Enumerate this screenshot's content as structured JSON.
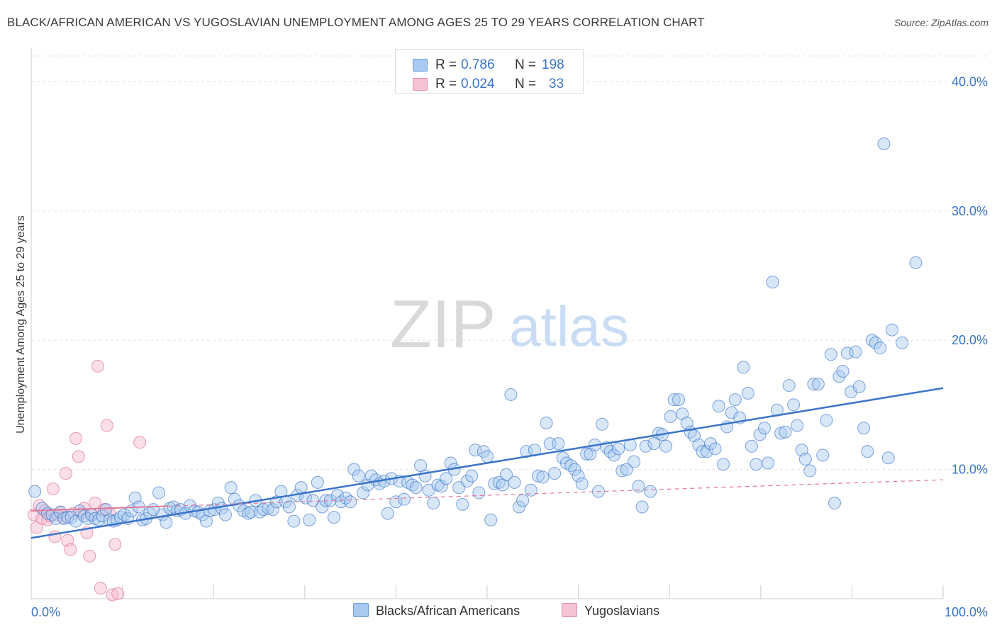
{
  "title": "BLACK/AFRICAN AMERICAN VS YUGOSLAVIAN UNEMPLOYMENT AMONG AGES 25 TO 29 YEARS CORRELATION CHART",
  "source": "Source: ZipAtlas.com",
  "watermark": {
    "zip": "ZIP",
    "atlas": "atlas"
  },
  "colors": {
    "blue": "#3a74c9",
    "blue_fill": "#a9c9f0",
    "pink": "#e0799b",
    "pink_fill": "#f5b8cb",
    "grid": "#e3e3e3"
  },
  "stats": {
    "rows": [
      {
        "r_label": "R =",
        "r_value": "0.786",
        "n_label": "N =",
        "n_value": "198"
      },
      {
        "r_label": "R =",
        "r_value": "0.024",
        "n_label": "N =",
        "n_value": "33"
      }
    ]
  },
  "legend": {
    "blue_label": "Blacks/African Americans",
    "pink_label": "Yugoslavians"
  },
  "chart_data": {
    "type": "scatter",
    "title": "BLACK/AFRICAN AMERICAN VS YUGOSLAVIAN UNEMPLOYMENT AMONG AGES 25 TO 29 YEARS CORRELATION CHART",
    "xlabel": "",
    "ylabel": "Unemployment Among Ages 25 to 29 years",
    "xlim": [
      0,
      100
    ],
    "ylim": [
      0,
      42
    ],
    "x_tick_labels": [
      "0.0%",
      "100.0%"
    ],
    "y_ticks": [
      10,
      20,
      30,
      40
    ],
    "y_tick_labels": [
      "10.0%",
      "20.0%",
      "30.0%",
      "40.0%"
    ],
    "grid": true,
    "series": [
      {
        "name": "Blacks/African Americans",
        "color": "#3a74c9",
        "trend": {
          "x": [
            0,
            100
          ],
          "y": [
            4.7,
            16.3
          ],
          "style": "solid"
        },
        "points": [
          [
            0.4,
            8.3
          ],
          [
            1.2,
            7.0
          ],
          [
            1.8,
            6.6
          ],
          [
            2.3,
            6.5
          ],
          [
            2.7,
            6.2
          ],
          [
            3.2,
            6.7
          ],
          [
            3.6,
            6.2
          ],
          [
            4.0,
            6.3
          ],
          [
            4.4,
            6.3
          ],
          [
            4.9,
            6.0
          ],
          [
            5.3,
            6.8
          ],
          [
            5.8,
            6.4
          ],
          [
            6.2,
            6.2
          ],
          [
            6.6,
            6.5
          ],
          [
            7.0,
            6.2
          ],
          [
            7.4,
            6.1
          ],
          [
            7.8,
            6.4
          ],
          [
            8.2,
            6.9
          ],
          [
            8.6,
            6.1
          ],
          [
            9.0,
            6.0
          ],
          [
            9.4,
            6.1
          ],
          [
            9.8,
            6.3
          ],
          [
            10.2,
            6.5
          ],
          [
            10.6,
            6.2
          ],
          [
            11.0,
            6.8
          ],
          [
            11.4,
            7.8
          ],
          [
            11.8,
            7.1
          ],
          [
            12.2,
            6.1
          ],
          [
            12.6,
            6.2
          ],
          [
            13.0,
            6.6
          ],
          [
            13.4,
            6.9
          ],
          [
            14.0,
            8.2
          ],
          [
            14.4,
            6.5
          ],
          [
            14.8,
            5.9
          ],
          [
            15.2,
            7.0
          ],
          [
            15.6,
            7.1
          ],
          [
            16.0,
            6.8
          ],
          [
            16.4,
            6.9
          ],
          [
            16.9,
            6.6
          ],
          [
            17.4,
            7.2
          ],
          [
            17.9,
            6.8
          ],
          [
            18.3,
            6.7
          ],
          [
            18.8,
            6.5
          ],
          [
            19.2,
            6.0
          ],
          [
            19.6,
            6.8
          ],
          [
            20.1,
            6.9
          ],
          [
            20.5,
            7.4
          ],
          [
            20.9,
            7.0
          ],
          [
            21.3,
            6.5
          ],
          [
            21.9,
            8.6
          ],
          [
            22.3,
            7.7
          ],
          [
            22.8,
            7.2
          ],
          [
            23.3,
            6.8
          ],
          [
            23.8,
            6.6
          ],
          [
            24.1,
            6.7
          ],
          [
            24.6,
            7.6
          ],
          [
            25.1,
            6.7
          ],
          [
            25.5,
            6.9
          ],
          [
            26.0,
            7.0
          ],
          [
            26.5,
            6.9
          ],
          [
            26.9,
            7.5
          ],
          [
            27.4,
            8.3
          ],
          [
            27.9,
            7.5
          ],
          [
            28.3,
            7.1
          ],
          [
            28.8,
            6.0
          ],
          [
            29.2,
            8.0
          ],
          [
            29.6,
            8.6
          ],
          [
            30.1,
            7.8
          ],
          [
            30.5,
            6.1
          ],
          [
            30.9,
            7.6
          ],
          [
            31.4,
            9.0
          ],
          [
            31.9,
            7.1
          ],
          [
            32.3,
            7.6
          ],
          [
            32.8,
            7.6
          ],
          [
            33.2,
            6.3
          ],
          [
            33.6,
            8.0
          ],
          [
            34.0,
            7.5
          ],
          [
            34.5,
            7.8
          ],
          [
            35.0,
            7.5
          ],
          [
            35.4,
            10.0
          ],
          [
            35.9,
            9.5
          ],
          [
            36.4,
            8.2
          ],
          [
            36.9,
            8.8
          ],
          [
            37.3,
            9.5
          ],
          [
            37.8,
            9.2
          ],
          [
            38.2,
            8.9
          ],
          [
            38.7,
            9.1
          ],
          [
            39.1,
            6.6
          ],
          [
            39.5,
            9.3
          ],
          [
            40.0,
            7.5
          ],
          [
            40.4,
            9.1
          ],
          [
            40.9,
            7.7
          ],
          [
            41.3,
            9.0
          ],
          [
            41.8,
            8.8
          ],
          [
            42.2,
            8.6
          ],
          [
            42.7,
            10.3
          ],
          [
            43.2,
            9.5
          ],
          [
            43.6,
            8.4
          ],
          [
            44.1,
            7.4
          ],
          [
            44.6,
            8.8
          ],
          [
            45.0,
            8.7
          ],
          [
            45.5,
            9.3
          ],
          [
            46.0,
            10.5
          ],
          [
            46.4,
            10.0
          ],
          [
            46.9,
            8.6
          ],
          [
            47.3,
            7.3
          ],
          [
            47.8,
            9.1
          ],
          [
            48.3,
            9.5
          ],
          [
            48.7,
            11.5
          ],
          [
            49.1,
            8.2
          ],
          [
            49.6,
            11.4
          ],
          [
            50.0,
            11.0
          ],
          [
            50.4,
            6.1
          ],
          [
            50.8,
            8.9
          ],
          [
            51.3,
            9.0
          ],
          [
            51.7,
            8.8
          ],
          [
            52.1,
            9.6
          ],
          [
            52.6,
            15.8
          ],
          [
            53.0,
            9.0
          ],
          [
            53.5,
            7.1
          ],
          [
            53.9,
            7.6
          ],
          [
            54.3,
            11.4
          ],
          [
            54.8,
            8.4
          ],
          [
            55.2,
            11.5
          ],
          [
            55.6,
            9.5
          ],
          [
            56.1,
            9.4
          ],
          [
            56.5,
            13.6
          ],
          [
            56.9,
            12.0
          ],
          [
            57.4,
            9.7
          ],
          [
            57.8,
            12.0
          ],
          [
            58.3,
            10.9
          ],
          [
            58.7,
            10.5
          ],
          [
            59.2,
            10.3
          ],
          [
            59.6,
            10.0
          ],
          [
            60.0,
            9.5
          ],
          [
            60.4,
            8.9
          ],
          [
            60.9,
            11.2
          ],
          [
            61.3,
            11.2
          ],
          [
            61.8,
            11.9
          ],
          [
            62.2,
            8.3
          ],
          [
            62.6,
            13.5
          ],
          [
            63.1,
            11.7
          ],
          [
            63.5,
            11.4
          ],
          [
            63.9,
            11.1
          ],
          [
            64.4,
            11.6
          ],
          [
            64.8,
            9.9
          ],
          [
            65.3,
            10.0
          ],
          [
            65.7,
            11.9
          ],
          [
            66.1,
            10.6
          ],
          [
            66.6,
            8.7
          ],
          [
            67.0,
            7.1
          ],
          [
            67.4,
            11.8
          ],
          [
            67.9,
            8.3
          ],
          [
            68.3,
            12.0
          ],
          [
            68.8,
            12.8
          ],
          [
            69.2,
            12.7
          ],
          [
            69.6,
            11.8
          ],
          [
            70.1,
            14.1
          ],
          [
            70.5,
            15.4
          ],
          [
            71.0,
            15.4
          ],
          [
            71.4,
            14.3
          ],
          [
            71.9,
            13.6
          ],
          [
            72.3,
            12.9
          ],
          [
            72.7,
            12.6
          ],
          [
            73.2,
            11.9
          ],
          [
            73.6,
            11.4
          ],
          [
            74.1,
            11.4
          ],
          [
            74.5,
            12.0
          ],
          [
            75.0,
            11.6
          ],
          [
            75.4,
            14.9
          ],
          [
            75.9,
            10.4
          ],
          [
            76.3,
            13.3
          ],
          [
            76.8,
            14.4
          ],
          [
            77.2,
            15.4
          ],
          [
            77.7,
            14.0
          ],
          [
            78.1,
            17.9
          ],
          [
            78.6,
            15.9
          ],
          [
            79.0,
            11.8
          ],
          [
            79.5,
            10.4
          ],
          [
            79.9,
            12.7
          ],
          [
            80.4,
            13.2
          ],
          [
            80.8,
            10.5
          ],
          [
            81.3,
            24.5
          ],
          [
            81.8,
            14.6
          ],
          [
            82.2,
            12.8
          ],
          [
            82.7,
            12.9
          ],
          [
            83.1,
            16.5
          ],
          [
            83.6,
            15.0
          ],
          [
            84.0,
            13.4
          ],
          [
            84.5,
            11.5
          ],
          [
            84.9,
            10.8
          ],
          [
            85.4,
            9.9
          ],
          [
            85.8,
            16.6
          ],
          [
            86.3,
            16.6
          ],
          [
            86.8,
            11.1
          ],
          [
            87.2,
            13.8
          ],
          [
            87.7,
            18.9
          ],
          [
            88.1,
            7.4
          ],
          [
            88.6,
            17.2
          ],
          [
            89.0,
            17.6
          ],
          [
            89.5,
            19.0
          ],
          [
            89.9,
            16.0
          ],
          [
            90.4,
            19.1
          ],
          [
            90.8,
            16.4
          ],
          [
            91.3,
            13.2
          ],
          [
            91.7,
            11.4
          ],
          [
            92.2,
            20.0
          ],
          [
            92.6,
            19.8
          ],
          [
            93.1,
            19.4
          ],
          [
            93.5,
            35.2
          ],
          [
            94.0,
            10.9
          ],
          [
            94.4,
            20.8
          ],
          [
            95.5,
            19.8
          ],
          [
            97.0,
            26.0
          ]
        ]
      },
      {
        "name": "Yugoslavians",
        "color": "#e0799b",
        "trend": {
          "x": [
            0,
            100
          ],
          "y": [
            6.8,
            9.2
          ],
          "style": "dashed"
        },
        "points": [
          [
            0.3,
            6.5
          ],
          [
            0.6,
            5.5
          ],
          [
            0.9,
            7.2
          ],
          [
            1.2,
            6.2
          ],
          [
            1.5,
            6.8
          ],
          [
            1.8,
            6.1
          ],
          [
            2.1,
            6.4
          ],
          [
            2.4,
            8.5
          ],
          [
            2.6,
            4.8
          ],
          [
            2.9,
            6.5
          ],
          [
            3.2,
            6.7
          ],
          [
            3.5,
            6.3
          ],
          [
            3.8,
            9.7
          ],
          [
            4.0,
            4.5
          ],
          [
            4.3,
            3.8
          ],
          [
            4.6,
            6.6
          ],
          [
            4.9,
            12.4
          ],
          [
            5.2,
            11.0
          ],
          [
            5.5,
            6.6
          ],
          [
            5.8,
            7.0
          ],
          [
            6.1,
            5.1
          ],
          [
            6.4,
            3.3
          ],
          [
            6.7,
            6.5
          ],
          [
            7.0,
            7.4
          ],
          [
            7.3,
            18.0
          ],
          [
            7.6,
            0.8
          ],
          [
            8.0,
            6.9
          ],
          [
            8.3,
            13.4
          ],
          [
            8.6,
            6.6
          ],
          [
            8.9,
            0.3
          ],
          [
            9.2,
            4.2
          ],
          [
            9.5,
            0.4
          ],
          [
            11.9,
            12.1
          ]
        ]
      }
    ]
  }
}
